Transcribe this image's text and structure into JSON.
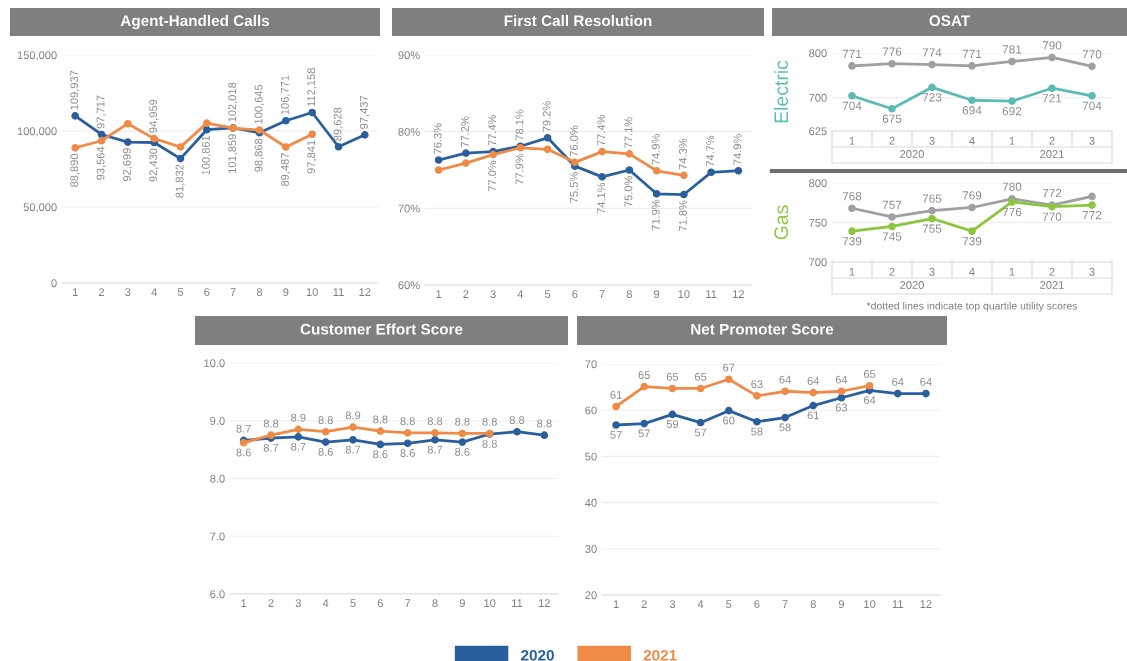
{
  "chart_data": [
    {
      "type": "line",
      "title": "Agent-Handled Calls",
      "categories": [
        "1",
        "2",
        "3",
        "4",
        "5",
        "6",
        "7",
        "8",
        "9",
        "10",
        "11",
        "12"
      ],
      "ylim": [
        0,
        150000
      ],
      "yticks": [
        0,
        {
          "value": 50000,
          "label": "50,000"
        },
        {
          "value": 100000,
          "label": "100,000"
        },
        {
          "value": 150000,
          "label": "150,000"
        }
      ],
      "grid": "y",
      "marker": "circle",
      "series": [
        {
          "color": "#2a5f9e",
          "values": [
            109937,
            97717,
            92699,
            92430,
            81832,
            100861,
            102018,
            98868,
            106771,
            112158,
            89628,
            97437
          ],
          "value_labels": [
            "109,937",
            "97,717",
            "92,699",
            "92,430",
            "81,832",
            "100,861",
            "102,018",
            "98,868",
            "106,771",
            "112,158",
            "89,628",
            "97,437"
          ]
        },
        {
          "color": "#ef8a47",
          "values": [
            88890,
            93564,
            104800,
            94959,
            89500,
            105200,
            101859,
            100645,
            89487,
            97841,
            null,
            null
          ],
          "value_labels": [
            "88,890",
            "93,564",
            null,
            "94,959",
            null,
            null,
            "101,859",
            "100,645",
            "89,487",
            "97,841",
            null,
            null
          ]
        }
      ]
    },
    {
      "type": "line",
      "title": "First Call Resolution",
      "categories": [
        "1",
        "2",
        "3",
        "4",
        "5",
        "6",
        "7",
        "8",
        "9",
        "10",
        "11",
        "12"
      ],
      "ylim": [
        60,
        90
      ],
      "yticks": [
        {
          "value": 60,
          "label": "60%"
        },
        {
          "value": 70,
          "label": "70%"
        },
        {
          "value": 80,
          "label": "80%"
        },
        {
          "value": 90,
          "label": "90%"
        }
      ],
      "grid": "y",
      "marker": "circle",
      "series": [
        {
          "color": "#2a5f9e",
          "values": [
            76.3,
            77.2,
            77.4,
            78.1,
            79.2,
            75.5,
            74.1,
            75.0,
            71.9,
            71.8,
            74.7,
            74.9
          ],
          "value_labels": [
            "76.3%",
            "77.2%",
            "77.4%",
            "78.1%",
            "79.2%",
            "75.5%",
            "74.1%",
            "75.0%",
            "71.9%",
            "71.8%",
            "74.7%",
            "74.9%"
          ]
        },
        {
          "color": "#ef8a47",
          "values": [
            75.0,
            75.9,
            77.0,
            77.9,
            77.7,
            76.0,
            77.4,
            77.1,
            74.9,
            74.3,
            null,
            null
          ],
          "value_labels": [
            null,
            null,
            "77.0%",
            "77.9%",
            null,
            "76.0%",
            "77.4%",
            "77.1%",
            "74.9%",
            "74.3%",
            null,
            null
          ]
        }
      ]
    },
    {
      "type": "line",
      "title": "OSAT",
      "ylabel": "Electric",
      "categories": [
        "1",
        "2",
        "3",
        "4",
        "1",
        "2",
        "3"
      ],
      "annotations": [
        "2020",
        "2021"
      ],
      "ylim": [
        625,
        800
      ],
      "yticks": [
        625,
        700,
        800
      ],
      "grid": "y",
      "marker": "circle",
      "series": [
        {
          "color": "#a0a0a0",
          "values": [
            771,
            776,
            774,
            771,
            781,
            790,
            770
          ],
          "value_labels": [
            "771",
            "776",
            "774",
            "771",
            "781",
            "790",
            "770"
          ]
        },
        {
          "color": "#5bbcb4",
          "values": [
            704,
            675,
            723,
            694,
            692,
            721,
            704
          ],
          "value_labels": [
            "704",
            "675",
            "723",
            "694",
            "692",
            "721",
            "704"
          ]
        }
      ]
    },
    {
      "type": "line",
      "ylabel": "Gas",
      "categories": [
        "1",
        "2",
        "3",
        "4",
        "1",
        "2",
        "3"
      ],
      "annotations": [
        "2020",
        "2021",
        "*dotted lines indicate top quartile utility scores"
      ],
      "ylim": [
        700,
        800
      ],
      "yticks": [
        700,
        750,
        800
      ],
      "grid": "y",
      "marker": "circle",
      "series": [
        {
          "color": "#a0a0a0",
          "values": [
            768,
            757,
            765,
            769,
            780,
            772,
            783
          ],
          "value_labels": [
            "768",
            "757",
            "765",
            "769",
            "780",
            "772",
            null
          ]
        },
        {
          "color": "#8cc63f",
          "values": [
            739,
            745,
            755,
            739,
            776,
            770,
            772
          ],
          "value_labels": [
            "739",
            "745",
            "755",
            "739",
            "776",
            "770",
            "772"
          ]
        }
      ]
    },
    {
      "type": "line",
      "title": "Customer Effort Score",
      "categories": [
        "1",
        "2",
        "3",
        "4",
        "5",
        "6",
        "7",
        "8",
        "9",
        "10",
        "11",
        "12"
      ],
      "ylim": [
        6.0,
        10.0
      ],
      "yticks": [
        {
          "value": 6,
          "label": "6.0"
        },
        {
          "value": 7,
          "label": "7.0"
        },
        {
          "value": 8,
          "label": "8.0"
        },
        {
          "value": 9,
          "label": "9.0"
        },
        {
          "value": 10,
          "label": "10.0"
        }
      ],
      "grid": "y",
      "marker": "circle",
      "series": [
        {
          "color": "#2a5f9e",
          "values": [
            8.66,
            8.7,
            8.72,
            8.63,
            8.67,
            8.59,
            8.61,
            8.67,
            8.63,
            8.77,
            8.81,
            8.75
          ],
          "value_labels": [
            "8.7",
            "8.7",
            "8.7",
            "8.6",
            "8.7",
            "8.6",
            "8.6",
            "8.7",
            "8.6",
            "8.8",
            "8.8",
            "8.8"
          ]
        },
        {
          "color": "#ef8a47",
          "values": [
            8.62,
            8.75,
            8.85,
            8.81,
            8.89,
            8.82,
            8.79,
            8.79,
            8.78,
            8.78,
            null,
            null
          ],
          "value_labels": [
            "8.6",
            "8.8",
            "8.9",
            "8.8",
            "8.9",
            "8.8",
            "8.8",
            "8.8",
            "8.8",
            "8.8",
            null,
            null
          ]
        }
      ]
    },
    {
      "type": "line",
      "title": "Net Promoter Score",
      "categories": [
        "1",
        "2",
        "3",
        "4",
        "5",
        "6",
        "7",
        "8",
        "9",
        "10",
        "11",
        "12"
      ],
      "ylim": [
        20,
        70
      ],
      "yticks": [
        20,
        30,
        40,
        50,
        60,
        70
      ],
      "grid": "y",
      "marker": "circle",
      "legend": "bottom",
      "series": [
        {
          "name": "2020",
          "color": "#2a5f9e",
          "values": [
            56.8,
            57.1,
            59.1,
            57.3,
            59.9,
            57.5,
            58.4,
            61.0,
            62.7,
            64.3,
            63.6,
            63.6
          ],
          "value_labels": [
            "57",
            "57",
            "59",
            "57",
            "60",
            "58",
            "58",
            "61",
            "63",
            "64",
            "64",
            "64"
          ]
        },
        {
          "name": "2021",
          "color": "#ef8a47",
          "values": [
            60.8,
            65.1,
            64.7,
            64.7,
            66.7,
            63.1,
            64.1,
            63.8,
            64.1,
            65.3,
            null,
            null
          ],
          "value_labels": [
            "61",
            "65",
            "65",
            "65",
            "67",
            "63",
            "64",
            "64",
            "64",
            "65",
            null,
            null
          ]
        }
      ]
    }
  ]
}
